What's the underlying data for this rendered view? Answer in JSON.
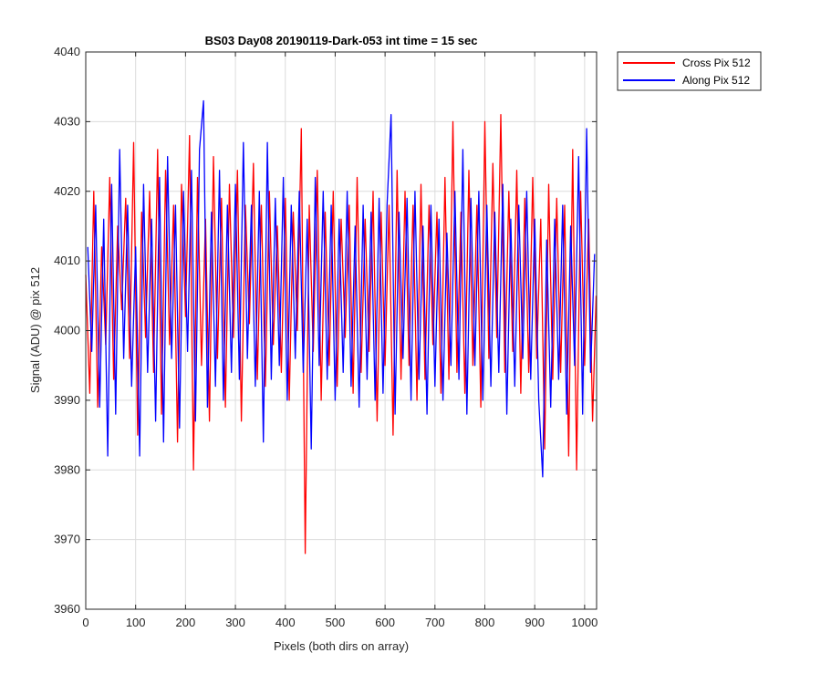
{
  "chart_data": {
    "type": "line",
    "title": "BS03 Day08 20190119-Dark-053 int time = 15 sec",
    "xlabel": "Pixels (both dirs on array)",
    "ylabel": "Signal (ADU) @ pix 512",
    "xlim": [
      0,
      1024
    ],
    "ylim": [
      3960,
      4040
    ],
    "xticks": [
      0,
      100,
      200,
      300,
      400,
      500,
      600,
      700,
      800,
      900,
      1000
    ],
    "yticks": [
      3960,
      3970,
      3980,
      3990,
      4000,
      4010,
      4020,
      4030,
      4040
    ],
    "grid": true,
    "legend_position": "outside-top-right",
    "sample_step": 8,
    "series": [
      {
        "name": "Cross Pix 512",
        "color": "#ff0000",
        "x": [
          0,
          8,
          16,
          24,
          32,
          40,
          48,
          56,
          64,
          72,
          80,
          88,
          96,
          104,
          112,
          120,
          128,
          136,
          144,
          152,
          160,
          168,
          176,
          184,
          192,
          200,
          208,
          216,
          224,
          232,
          240,
          248,
          256,
          264,
          272,
          280,
          288,
          296,
          304,
          312,
          320,
          328,
          336,
          344,
          352,
          360,
          368,
          376,
          384,
          392,
          400,
          408,
          416,
          424,
          432,
          440,
          448,
          456,
          464,
          472,
          480,
          488,
          496,
          504,
          512,
          520,
          528,
          536,
          544,
          552,
          560,
          568,
          576,
          584,
          592,
          600,
          608,
          616,
          624,
          632,
          640,
          648,
          656,
          664,
          672,
          680,
          688,
          696,
          704,
          712,
          720,
          728,
          736,
          744,
          752,
          760,
          768,
          776,
          784,
          792,
          800,
          808,
          816,
          824,
          832,
          840,
          848,
          856,
          864,
          872,
          880,
          888,
          896,
          904,
          912,
          920,
          928,
          936,
          944,
          952,
          960,
          968,
          976,
          984,
          992,
          1000,
          1008,
          1016,
          1023
        ],
        "values": [
          4008,
          3991,
          4020,
          3989,
          4012,
          3998,
          4022,
          3993,
          4015,
          4003,
          4019,
          3996,
          4027,
          3985,
          4017,
          3999,
          4020,
          3994,
          4026,
          3988,
          4023,
          3998,
          4018,
          3984,
          4021,
          4002,
          4028,
          3980,
          4022,
          3995,
          4016,
          3987,
          4025,
          3996,
          4019,
          3989,
          4021,
          3999,
          4023,
          3987,
          4018,
          4001,
          4024,
          3993,
          4018,
          3992,
          4020,
          3998,
          4015,
          3994,
          4019,
          3990,
          4017,
          4000,
          4029,
          3968,
          4018,
          3997,
          4023,
          3990,
          4017,
          3995,
          4020,
          3992,
          4016,
          3999,
          4018,
          3991,
          4022,
          3994,
          4016,
          3997,
          4020,
          3987,
          4017,
          3995,
          4018,
          3985,
          4023,
          3993,
          4020,
          3995,
          4018,
          3990,
          4021,
          3993,
          4018,
          3998,
          4017,
          3991,
          4022,
          3993,
          4030,
          3994,
          4017,
          3991,
          4023,
          3995,
          4018,
          3989,
          4030,
          3996,
          4024,
          3999,
          4031,
          3994,
          4020,
          3997,
          4023,
          3991,
          4019,
          3994,
          4022,
          3996,
          4016,
          3983,
          4021,
          3993,
          4019,
          3994,
          4018,
          3982,
          4026,
          3980,
          4020,
          3995,
          4016,
          3987,
          4005
        ]
      },
      {
        "name": "Along Pix 512",
        "color": "#0000ff",
        "x": [
          4,
          12,
          20,
          28,
          36,
          44,
          52,
          60,
          68,
          76,
          84,
          92,
          100,
          108,
          116,
          124,
          132,
          140,
          148,
          156,
          164,
          172,
          180,
          188,
          196,
          204,
          212,
          220,
          228,
          236,
          244,
          252,
          260,
          268,
          276,
          284,
          292,
          300,
          308,
          316,
          324,
          332,
          340,
          348,
          356,
          364,
          372,
          380,
          388,
          396,
          404,
          412,
          420,
          428,
          436,
          444,
          452,
          460,
          468,
          476,
          484,
          492,
          500,
          508,
          516,
          524,
          532,
          540,
          548,
          556,
          564,
          572,
          580,
          588,
          596,
          604,
          612,
          620,
          628,
          636,
          644,
          652,
          660,
          668,
          676,
          684,
          692,
          700,
          708,
          716,
          724,
          732,
          740,
          748,
          756,
          764,
          772,
          780,
          788,
          796,
          804,
          812,
          820,
          828,
          836,
          844,
          852,
          860,
          868,
          876,
          884,
          892,
          900,
          908,
          916,
          924,
          932,
          940,
          948,
          956,
          964,
          972,
          980,
          988,
          996,
          1004,
          1012,
          1020
        ],
        "values": [
          4012,
          3997,
          4018,
          3989,
          4016,
          3982,
          4021,
          3988,
          4026,
          3996,
          4018,
          3992,
          4012,
          3982,
          4021,
          3994,
          4016,
          3987,
          4022,
          3984,
          4025,
          3996,
          4018,
          3986,
          4020,
          3997,
          4023,
          3987,
          4026,
          4033,
          3989,
          4017,
          3992,
          4023,
          3990,
          4018,
          3994,
          4021,
          3993,
          4027,
          3996,
          4018,
          3992,
          4020,
          3984,
          4027,
          3993,
          4019,
          3995,
          4022,
          3990,
          4018,
          3996,
          4020,
          3994,
          4016,
          3983,
          4022,
          3995,
          4020,
          3993,
          4018,
          3990,
          4016,
          3994,
          4020,
          3992,
          4015,
          3989,
          4018,
          3993,
          4017,
          3990,
          4019,
          3991,
          4018,
          4031,
          3988,
          4017,
          3996,
          4019,
          3990,
          4020,
          3993,
          4015,
          3988,
          4018,
          3992,
          4016,
          3990,
          4014,
          3995,
          4020,
          3993,
          4026,
          3988,
          4019,
          3995,
          4020,
          3990,
          4018,
          3992,
          4017,
          3994,
          4021,
          3988,
          4016,
          3992,
          4018,
          3996,
          4020,
          3993,
          4016,
          3990,
          3979,
          4013,
          3989,
          4016,
          3993,
          4018,
          3988,
          4015,
          3995,
          4025,
          3988,
          4029,
          3994,
          4011
        ]
      }
    ]
  }
}
